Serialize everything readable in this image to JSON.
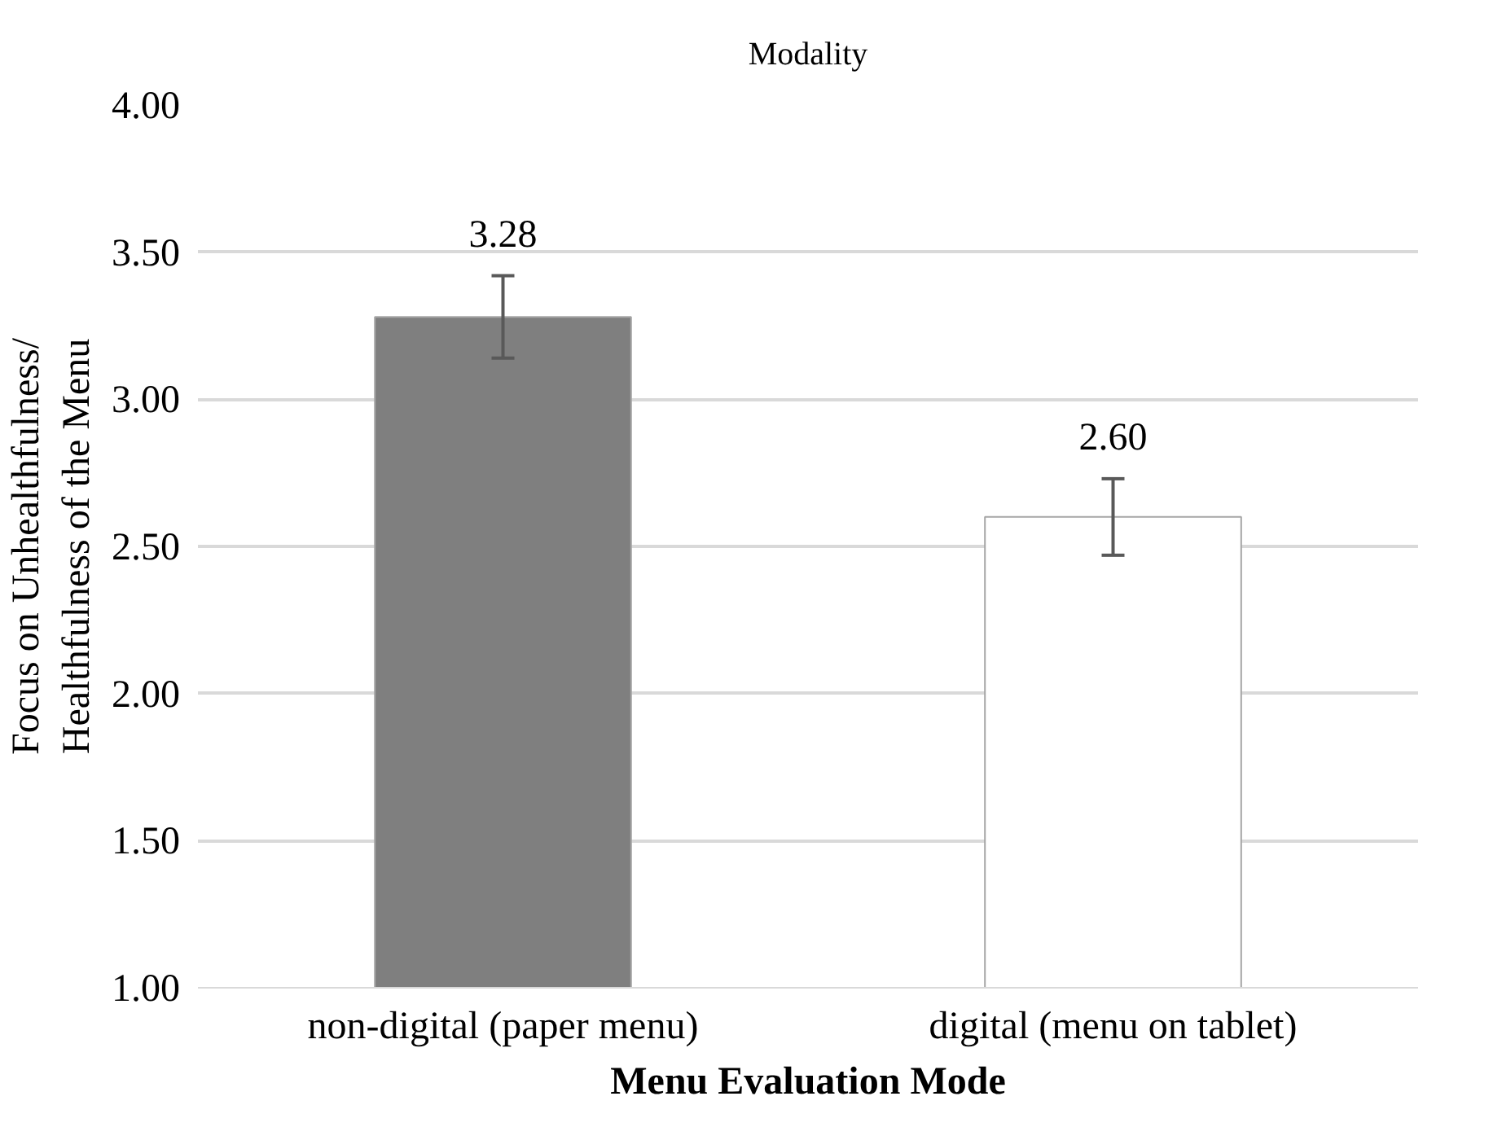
{
  "chart_data": {
    "type": "bar",
    "title": "Modality",
    "xlabel": "Menu Evaluation Mode",
    "ylabel": "Focus on Unhealthfulness/\nHealthfulness of the Menu",
    "categories": [
      "non-digital (paper menu)",
      "digital (menu on tablet)"
    ],
    "values": [
      3.28,
      2.6
    ],
    "colors": [
      "#7f7f7f",
      "#ffffff"
    ],
    "errors": [
      0.14,
      0.13
    ],
    "value_labels": [
      "3.28",
      "2.60"
    ],
    "ylim": [
      1.0,
      4.0
    ],
    "yticks": [
      {
        "value": 1.0,
        "label": "1.00"
      },
      {
        "value": 1.5,
        "label": "1.50"
      },
      {
        "value": 2.0,
        "label": "2.00"
      },
      {
        "value": 2.5,
        "label": "2.50"
      },
      {
        "value": 3.0,
        "label": "3.00"
      },
      {
        "value": 3.5,
        "label": "3.50"
      },
      {
        "value": 4.0,
        "label": "4.00"
      }
    ],
    "grid": "y"
  }
}
